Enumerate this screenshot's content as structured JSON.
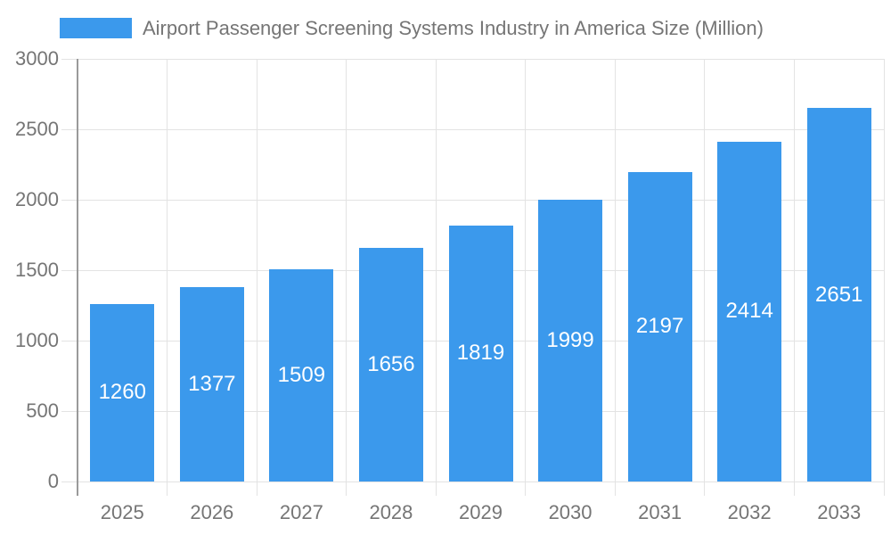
{
  "chart_data": {
    "type": "bar",
    "title": "Airport Passenger Screening Systems Industry in America Size (Million)",
    "legend_position": "top",
    "categories": [
      "2025",
      "2026",
      "2027",
      "2028",
      "2029",
      "2030",
      "2031",
      "2032",
      "2033"
    ],
    "values": [
      1260,
      1377,
      1509,
      1656,
      1819,
      1999,
      2197,
      2414,
      2651
    ],
    "bar_labels": [
      "1260",
      "1377",
      "1509",
      "1656",
      "1819",
      "1999",
      "2197",
      "2414",
      "2651"
    ],
    "xlabel": "",
    "ylabel": "",
    "ylim": [
      0,
      3000
    ],
    "yticks": [
      0,
      500,
      1000,
      1500,
      2000,
      2500,
      3000
    ],
    "grid": true,
    "colors": {
      "bar": "#3b99ec",
      "bar_label": "#ffffff",
      "axis_text": "#757575",
      "gridline": "#e3e3e3",
      "axis_line": "#9a9a9a",
      "background": "#ffffff"
    }
  }
}
